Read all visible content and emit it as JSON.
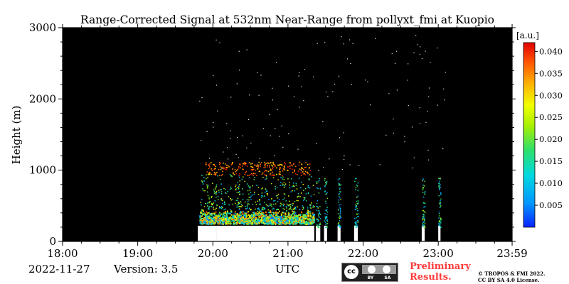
{
  "chart_data": {
    "type": "heatmap",
    "title": "Range-Corrected Signal at 532nm Near-Range from pollyxt_fmi at Kuopio",
    "ylabel": "Height (m)",
    "xlabel": "UTC",
    "x_ticks": [
      "18:00",
      "19:00",
      "20:00",
      "21:00",
      "22:00",
      "23:00",
      "23:59"
    ],
    "y_ticks": [
      "0",
      "1000",
      "2000",
      "3000"
    ],
    "xlim_hours": [
      18.0,
      23.983
    ],
    "ylim": [
      0,
      3000
    ],
    "background_color": "#000000",
    "colorbar": {
      "unit": "[a.u.]",
      "range": [
        0.0,
        0.042
      ],
      "ticks": [
        "0.005",
        "0.010",
        "0.015",
        "0.020",
        "0.025",
        "0.030",
        "0.035",
        "0.040"
      ],
      "colors": [
        "#0a22ff",
        "#0096ff",
        "#00d8e0",
        "#2fe06a",
        "#a8f000",
        "#f0ff00",
        "#ffb000",
        "#ff5000",
        "#e00000"
      ]
    },
    "profiles_periods_utc": [
      [
        19.8,
        20.05
      ],
      [
        20.05,
        21.35
      ],
      [
        21.37,
        21.43
      ],
      [
        21.48,
        21.52
      ],
      [
        21.66,
        21.7
      ],
      [
        21.88,
        21.93
      ],
      [
        22.78,
        22.82
      ],
      [
        23.0,
        23.03
      ]
    ],
    "regions": [
      {
        "name": "surface-saturated",
        "t": [
          19.82,
          21.35
        ],
        "z": [
          0,
          250
        ],
        "signal": 0.042
      },
      {
        "name": "boundary-layer",
        "t": [
          19.82,
          21.35
        ],
        "z": [
          250,
          450
        ],
        "signal": 0.012
      },
      {
        "name": "upper-noise",
        "t": [
          19.82,
          21.35
        ],
        "z": [
          450,
          950
        ],
        "signal": 0.02
      },
      {
        "name": "cloud-layer",
        "t": [
          19.9,
          21.3
        ],
        "z": [
          930,
          1120
        ],
        "signal": 0.038
      }
    ]
  },
  "footer": {
    "date": "2022-11-27",
    "version": "Version: 3.5",
    "license_badge_cc": "cc",
    "license_badge_by": "BY",
    "license_badge_sa": "SA",
    "preliminary_line1": "Preliminary",
    "preliminary_line2": "Results.",
    "copyright_line1": "© TROPOS & FMI 2022.",
    "copyright_line2": "CC BY SA 4.0 License."
  }
}
